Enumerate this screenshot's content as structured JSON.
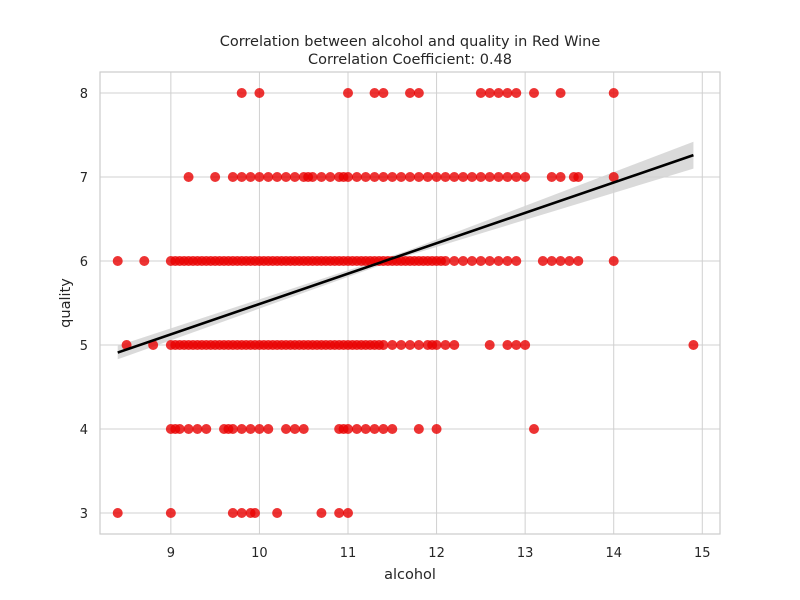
{
  "chart_data": {
    "type": "scatter",
    "title": "Correlation between alcohol and quality in Red Wine",
    "subtitle": "Correlation Coefficient: 0.48",
    "xlabel": "alcohol",
    "ylabel": "quality",
    "xlim": [
      8.2,
      15.2
    ],
    "ylim": [
      2.75,
      8.25
    ],
    "xticks": [
      9,
      10,
      11,
      12,
      13,
      14,
      15
    ],
    "yticks": [
      3,
      4,
      5,
      6,
      7,
      8
    ],
    "grid": true,
    "point_color": "#e80000",
    "regression": {
      "x": [
        8.4,
        14.9
      ],
      "y": [
        4.91,
        7.26
      ],
      "line_color": "#000000",
      "ci_color": "#d3d3d3",
      "ci_halfwidth_at_ends": [
        0.08,
        0.16
      ]
    },
    "points": [
      [
        8.4,
        3
      ],
      [
        9.0,
        3
      ],
      [
        9.7,
        3
      ],
      [
        9.8,
        3
      ],
      [
        9.9,
        3
      ],
      [
        9.95,
        3
      ],
      [
        10.2,
        3
      ],
      [
        10.7,
        3
      ],
      [
        10.9,
        3
      ],
      [
        11.0,
        3
      ],
      [
        9.0,
        4
      ],
      [
        9.05,
        4
      ],
      [
        9.1,
        4
      ],
      [
        9.2,
        4
      ],
      [
        9.3,
        4
      ],
      [
        9.4,
        4
      ],
      [
        9.6,
        4
      ],
      [
        9.65,
        4
      ],
      [
        9.7,
        4
      ],
      [
        9.8,
        4
      ],
      [
        9.9,
        4
      ],
      [
        10.0,
        4
      ],
      [
        10.1,
        4
      ],
      [
        10.3,
        4
      ],
      [
        10.4,
        4
      ],
      [
        10.5,
        4
      ],
      [
        10.9,
        4
      ],
      [
        10.95,
        4
      ],
      [
        11.0,
        4
      ],
      [
        11.1,
        4
      ],
      [
        11.2,
        4
      ],
      [
        11.3,
        4
      ],
      [
        11.4,
        4
      ],
      [
        11.5,
        4
      ],
      [
        11.8,
        4
      ],
      [
        12.0,
        4
      ],
      [
        13.1,
        4
      ],
      [
        8.5,
        5
      ],
      [
        8.8,
        5
      ],
      [
        9.0,
        5
      ],
      [
        9.05,
        5
      ],
      [
        9.1,
        5
      ],
      [
        9.15,
        5
      ],
      [
        9.2,
        5
      ],
      [
        9.25,
        5
      ],
      [
        9.3,
        5
      ],
      [
        9.35,
        5
      ],
      [
        9.4,
        5
      ],
      [
        9.45,
        5
      ],
      [
        9.5,
        5
      ],
      [
        9.55,
        5
      ],
      [
        9.6,
        5
      ],
      [
        9.65,
        5
      ],
      [
        9.7,
        5
      ],
      [
        9.75,
        5
      ],
      [
        9.8,
        5
      ],
      [
        9.85,
        5
      ],
      [
        9.9,
        5
      ],
      [
        9.95,
        5
      ],
      [
        10.0,
        5
      ],
      [
        10.05,
        5
      ],
      [
        10.1,
        5
      ],
      [
        10.15,
        5
      ],
      [
        10.2,
        5
      ],
      [
        10.25,
        5
      ],
      [
        10.3,
        5
      ],
      [
        10.35,
        5
      ],
      [
        10.4,
        5
      ],
      [
        10.45,
        5
      ],
      [
        10.5,
        5
      ],
      [
        10.55,
        5
      ],
      [
        10.6,
        5
      ],
      [
        10.65,
        5
      ],
      [
        10.7,
        5
      ],
      [
        10.75,
        5
      ],
      [
        10.8,
        5
      ],
      [
        10.85,
        5
      ],
      [
        10.9,
        5
      ],
      [
        10.95,
        5
      ],
      [
        11.0,
        5
      ],
      [
        11.05,
        5
      ],
      [
        11.1,
        5
      ],
      [
        11.15,
        5
      ],
      [
        11.2,
        5
      ],
      [
        11.25,
        5
      ],
      [
        11.3,
        5
      ],
      [
        11.35,
        5
      ],
      [
        11.4,
        5
      ],
      [
        11.5,
        5
      ],
      [
        11.6,
        5
      ],
      [
        11.7,
        5
      ],
      [
        11.8,
        5
      ],
      [
        11.9,
        5
      ],
      [
        11.95,
        5
      ],
      [
        12.0,
        5
      ],
      [
        12.1,
        5
      ],
      [
        12.2,
        5
      ],
      [
        12.6,
        5
      ],
      [
        12.8,
        5
      ],
      [
        12.9,
        5
      ],
      [
        13.0,
        5
      ],
      [
        14.9,
        5
      ],
      [
        8.4,
        6
      ],
      [
        8.7,
        6
      ],
      [
        9.0,
        6
      ],
      [
        9.05,
        6
      ],
      [
        9.1,
        6
      ],
      [
        9.15,
        6
      ],
      [
        9.2,
        6
      ],
      [
        9.25,
        6
      ],
      [
        9.3,
        6
      ],
      [
        9.35,
        6
      ],
      [
        9.4,
        6
      ],
      [
        9.45,
        6
      ],
      [
        9.5,
        6
      ],
      [
        9.55,
        6
      ],
      [
        9.6,
        6
      ],
      [
        9.65,
        6
      ],
      [
        9.7,
        6
      ],
      [
        9.75,
        6
      ],
      [
        9.8,
        6
      ],
      [
        9.85,
        6
      ],
      [
        9.9,
        6
      ],
      [
        9.95,
        6
      ],
      [
        10.0,
        6
      ],
      [
        10.05,
        6
      ],
      [
        10.1,
        6
      ],
      [
        10.15,
        6
      ],
      [
        10.2,
        6
      ],
      [
        10.25,
        6
      ],
      [
        10.3,
        6
      ],
      [
        10.35,
        6
      ],
      [
        10.4,
        6
      ],
      [
        10.45,
        6
      ],
      [
        10.5,
        6
      ],
      [
        10.55,
        6
      ],
      [
        10.6,
        6
      ],
      [
        10.65,
        6
      ],
      [
        10.7,
        6
      ],
      [
        10.75,
        6
      ],
      [
        10.8,
        6
      ],
      [
        10.85,
        6
      ],
      [
        10.9,
        6
      ],
      [
        10.95,
        6
      ],
      [
        11.0,
        6
      ],
      [
        11.05,
        6
      ],
      [
        11.1,
        6
      ],
      [
        11.15,
        6
      ],
      [
        11.2,
        6
      ],
      [
        11.25,
        6
      ],
      [
        11.3,
        6
      ],
      [
        11.35,
        6
      ],
      [
        11.4,
        6
      ],
      [
        11.45,
        6
      ],
      [
        11.5,
        6
      ],
      [
        11.55,
        6
      ],
      [
        11.6,
        6
      ],
      [
        11.65,
        6
      ],
      [
        11.7,
        6
      ],
      [
        11.75,
        6
      ],
      [
        11.8,
        6
      ],
      [
        11.85,
        6
      ],
      [
        11.9,
        6
      ],
      [
        11.95,
        6
      ],
      [
        12.0,
        6
      ],
      [
        12.05,
        6
      ],
      [
        12.1,
        6
      ],
      [
        12.2,
        6
      ],
      [
        12.3,
        6
      ],
      [
        12.4,
        6
      ],
      [
        12.5,
        6
      ],
      [
        12.6,
        6
      ],
      [
        12.7,
        6
      ],
      [
        12.8,
        6
      ],
      [
        12.9,
        6
      ],
      [
        13.2,
        6
      ],
      [
        13.3,
        6
      ],
      [
        13.4,
        6
      ],
      [
        13.5,
        6
      ],
      [
        13.6,
        6
      ],
      [
        14.0,
        6
      ],
      [
        9.2,
        7
      ],
      [
        9.5,
        7
      ],
      [
        9.7,
        7
      ],
      [
        9.8,
        7
      ],
      [
        9.9,
        7
      ],
      [
        10.0,
        7
      ],
      [
        10.1,
        7
      ],
      [
        10.2,
        7
      ],
      [
        10.3,
        7
      ],
      [
        10.4,
        7
      ],
      [
        10.5,
        7
      ],
      [
        10.55,
        7
      ],
      [
        10.6,
        7
      ],
      [
        10.7,
        7
      ],
      [
        10.8,
        7
      ],
      [
        10.9,
        7
      ],
      [
        10.95,
        7
      ],
      [
        11.0,
        7
      ],
      [
        11.1,
        7
      ],
      [
        11.2,
        7
      ],
      [
        11.3,
        7
      ],
      [
        11.4,
        7
      ],
      [
        11.5,
        7
      ],
      [
        11.6,
        7
      ],
      [
        11.7,
        7
      ],
      [
        11.8,
        7
      ],
      [
        11.9,
        7
      ],
      [
        12.0,
        7
      ],
      [
        12.1,
        7
      ],
      [
        12.2,
        7
      ],
      [
        12.3,
        7
      ],
      [
        12.4,
        7
      ],
      [
        12.5,
        7
      ],
      [
        12.6,
        7
      ],
      [
        12.7,
        7
      ],
      [
        12.8,
        7
      ],
      [
        12.9,
        7
      ],
      [
        13.0,
        7
      ],
      [
        13.3,
        7
      ],
      [
        13.4,
        7
      ],
      [
        13.55,
        7
      ],
      [
        13.6,
        7
      ],
      [
        14.0,
        7
      ],
      [
        9.8,
        8
      ],
      [
        10.0,
        8
      ],
      [
        11.0,
        8
      ],
      [
        11.3,
        8
      ],
      [
        11.4,
        8
      ],
      [
        11.7,
        8
      ],
      [
        11.8,
        8
      ],
      [
        12.5,
        8
      ],
      [
        12.6,
        8
      ],
      [
        12.7,
        8
      ],
      [
        12.8,
        8
      ],
      [
        12.9,
        8
      ],
      [
        13.1,
        8
      ],
      [
        13.4,
        8
      ],
      [
        14.0,
        8
      ]
    ]
  }
}
